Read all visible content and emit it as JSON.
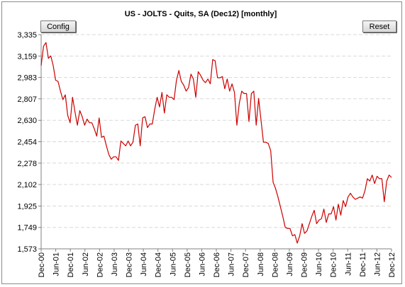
{
  "toolbar": {
    "config_label": "Config",
    "reset_label": "Reset"
  },
  "chart_data": {
    "type": "line",
    "title": "US - JOLTS - Quits, SA (Dec12) [monthly]",
    "xlabel": "",
    "ylabel": "",
    "ylim": [
      1573,
      3335
    ],
    "yticks": [
      1573,
      1749,
      1925,
      2102,
      2278,
      2454,
      2630,
      2807,
      2983,
      3159,
      3335
    ],
    "xticks": [
      "Dec-00",
      "Jun-01",
      "Dec-01",
      "Jun-02",
      "Dec-02",
      "Jun-03",
      "Dec-03",
      "Jun-04",
      "Dec-04",
      "Jun-05",
      "Dec-05",
      "Jun-06",
      "Dec-06",
      "Jun-07",
      "Dec-07",
      "Jun-08",
      "Dec-08",
      "Jun-09",
      "Dec-09",
      "Jun-10",
      "Dec-10",
      "Jun-11",
      "Dec-11",
      "Jun-12",
      "Dec-12"
    ],
    "grid": true,
    "legend": "none",
    "colors": {
      "line": "#cc0000",
      "grid": "#d9d9d9"
    },
    "series": [
      {
        "values": [
          3080,
          3240,
          3270,
          3140,
          3160,
          3080,
          2960,
          2950,
          2870,
          2800,
          2840,
          2670,
          2610,
          2820,
          2700,
          2590,
          2710,
          2660,
          2590,
          2640,
          2610,
          2610,
          2560,
          2500,
          2650,
          2490,
          2500,
          2420,
          2350,
          2310,
          2330,
          2330,
          2300,
          2460,
          2440,
          2420,
          2460,
          2420,
          2450,
          2590,
          2600,
          2420,
          2650,
          2660,
          2570,
          2600,
          2600,
          2720,
          2820,
          2740,
          2860,
          2690,
          2840,
          2820,
          2820,
          2800,
          2960,
          3040,
          2950,
          2920,
          2870,
          2900,
          3010,
          2970,
          2820,
          3030,
          3000,
          2960,
          2940,
          2970,
          2930,
          3130,
          3120,
          2980,
          2980,
          2990,
          2890,
          2970,
          2870,
          2930,
          2860,
          2590,
          2770,
          2870,
          2850,
          2850,
          2620,
          2850,
          2870,
          2590,
          2810,
          2630,
          2450,
          2450,
          2440,
          2380,
          2120,
          2070,
          2000,
          1920,
          1840,
          1750,
          1740,
          1740,
          1680,
          1690,
          1620,
          1680,
          1780,
          1700,
          1720,
          1780,
          1840,
          1890,
          1780,
          1810,
          1820,
          1900,
          1790,
          1860,
          1860,
          1920,
          1810,
          1940,
          1850,
          1970,
          1920,
          2000,
          2030,
          2000,
          1980,
          1990,
          2000,
          1990,
          2050,
          2150,
          2130,
          2180,
          2110,
          2170,
          2150,
          2150,
          1960,
          2130,
          2180,
          2160
        ]
      }
    ]
  }
}
